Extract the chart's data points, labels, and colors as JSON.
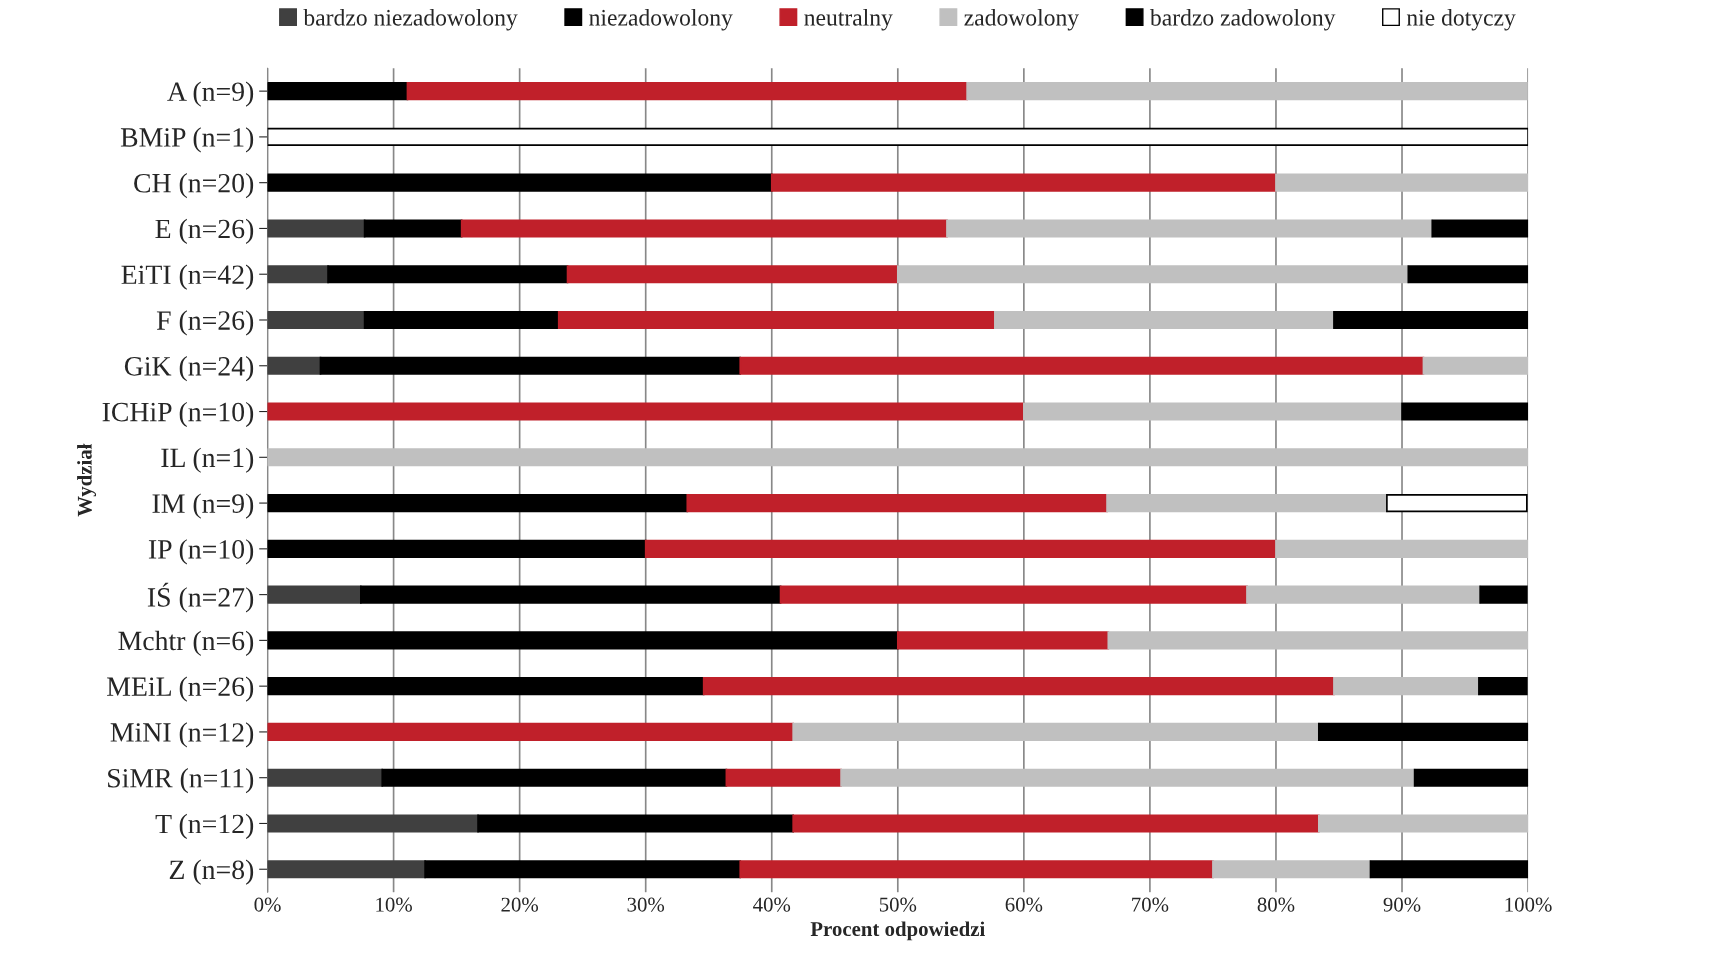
{
  "chart_data": {
    "type": "bar",
    "orientation": "horizontal",
    "stacked": true,
    "xlabel": "Procent odpowiedzi",
    "ylabel": "Wydział",
    "categories": [
      "A (n=9)",
      "BMiP (n=1)",
      "CH (n=20)",
      "E (n=26)",
      "EiTI (n=42)",
      "F (n=26)",
      "GiK (n=24)",
      "ICHiP (n=10)",
      "IL (n=1)",
      "IM (n=9)",
      "IP (n=10)",
      "IŚ (n=27)",
      "Mchtr (n=6)",
      "MEiL (n=26)",
      "MiNI (n=12)",
      "SiMR (n=11)",
      "T (n=12)",
      "Z (n=8)"
    ],
    "series": [
      {
        "name": "bardzo niezadowolony",
        "color": "#404040",
        "values": [
          null,
          null,
          null,
          7.7,
          4.8,
          7.7,
          4.2,
          null,
          null,
          null,
          null,
          7.4,
          null,
          null,
          null,
          9.1,
          16.7,
          12.5
        ]
      },
      {
        "name": "niezadowolony",
        "color": "#000000",
        "values": [
          11.1,
          null,
          40,
          7.7,
          19.0,
          15.4,
          33.3,
          null,
          null,
          33.3,
          30,
          33.3,
          50,
          34.6,
          null,
          27.3,
          25,
          25
        ]
      },
      {
        "name": "neutralny",
        "color": "#c0202a",
        "values": [
          44.4,
          null,
          40,
          38.5,
          26.2,
          34.6,
          54.2,
          60,
          null,
          33.3,
          50,
          37.0,
          16.7,
          50,
          41.7,
          9.1,
          41.7,
          37.5
        ]
      },
      {
        "name": "zadowolony",
        "color": "#c0c0c0",
        "values": [
          44.4,
          null,
          20,
          38.5,
          40.5,
          26.9,
          8.3,
          30,
          100,
          22.2,
          20,
          18.5,
          33.3,
          11.5,
          41.7,
          45.5,
          16.7,
          12.5
        ]
      },
      {
        "name": "bardzo zadowolony",
        "color": "#000000",
        "values": [
          null,
          null,
          null,
          7.7,
          9.5,
          15.4,
          null,
          10,
          null,
          null,
          null,
          3.7,
          null,
          3.8,
          16.7,
          9.1,
          null,
          12.5
        ]
      },
      {
        "name": "nie dotyczy",
        "color": "#ffffff",
        "values": [
          null,
          100,
          null,
          null,
          null,
          null,
          null,
          null,
          null,
          11.1,
          null,
          null,
          null,
          null,
          null,
          null,
          null,
          null
        ]
      }
    ],
    "xlim": [
      0,
      100
    ],
    "xticks": [
      {
        "value": 0,
        "label": "0%"
      },
      {
        "value": 10,
        "label": "10%"
      },
      {
        "value": 20,
        "label": "20%"
      },
      {
        "value": 30,
        "label": "30%"
      },
      {
        "value": 40,
        "label": "40%"
      },
      {
        "value": 50,
        "label": "50%"
      },
      {
        "value": 60,
        "label": "60%"
      },
      {
        "value": 70,
        "label": "70%"
      },
      {
        "value": 80,
        "label": "80%"
      },
      {
        "value": 90,
        "label": "90%"
      },
      {
        "value": 100,
        "label": "100%"
      }
    ],
    "grid": "x",
    "legend": "top"
  }
}
